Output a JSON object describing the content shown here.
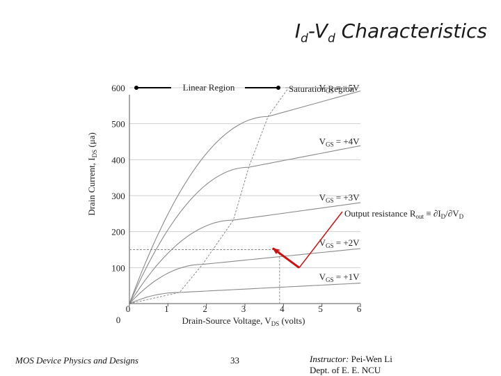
{
  "title": {
    "main": "I",
    "sub1": "d",
    "dash": "-V",
    "sub2": "d",
    "rest": " Characteristics"
  },
  "chart_data": {
    "type": "line",
    "xlabel": {
      "text": "Drain-Source Voltage, V",
      "sub": "DS",
      "after": " (volts)"
    },
    "ylabel": {
      "text": "Drain Current, I",
      "sub": "DS",
      "after": " (μa)"
    },
    "x_ticks": [
      0,
      1,
      2,
      3,
      4,
      5,
      6
    ],
    "x_tick_labels": [
      "0",
      "1",
      "2",
      "3",
      "4",
      "5",
      "6"
    ],
    "y_ticks": [
      100,
      200,
      300,
      400,
      500,
      600
    ],
    "y_tick_labels": [
      "100",
      "200",
      "300",
      "400",
      "500",
      "600"
    ],
    "origin_label": "0",
    "xlim": [
      0,
      6
    ],
    "ylim": [
      0,
      600
    ],
    "grid": true,
    "series": [
      {
        "name": "VGS = +1V",
        "label": "V",
        "label_sub": "GS",
        "label_after": " = +1V",
        "vsat": 1.3,
        "isat": 31,
        "slope": 5.5
      },
      {
        "name": "VGS = +2V",
        "label": "V",
        "label_sub": "GS",
        "label_after": " = +2V",
        "vsat": 1.9,
        "isat": 109,
        "slope": 10.7
      },
      {
        "name": "VGS = +3V",
        "label": "V",
        "label_sub": "GS",
        "label_after": " = +3V",
        "vsat": 2.7,
        "isat": 232,
        "slope": 14.7
      },
      {
        "name": "VGS = +4V",
        "label": "V",
        "label_sub": "GS",
        "label_after": " = +4V",
        "vsat": 3.1,
        "isat": 379,
        "slope": 20.6
      },
      {
        "name": "VGS = +5V",
        "label": "V",
        "label_sub": "GS",
        "label_after": " = +5V",
        "vsat": 3.6,
        "isat": 520,
        "slope": 29.6
      }
    ],
    "saturation_boundary": [
      [
        0,
        0
      ],
      [
        1.3,
        31
      ],
      [
        1.9,
        109
      ],
      [
        2.7,
        232
      ],
      [
        3.1,
        379
      ],
      [
        3.6,
        520
      ],
      [
        4.1,
        595
      ]
    ],
    "output_resistance_marker": {
      "x": 3.9,
      "y": 150
    },
    "annotations": {
      "linear_region": "Linear Region",
      "saturation_region": "Saturation Region",
      "output_resistance": {
        "text": "Output resistance R",
        "sub1": "out",
        "mid": " ≡ ∂I",
        "sub2": "D",
        "mid2": "/∂V",
        "sub3": "D"
      }
    }
  },
  "colors": {
    "curve": "#8a8a8a",
    "grid": "#cfcfcf",
    "axis": "#555555",
    "arrow_red": "#d01010",
    "text": "#222222"
  },
  "footer": {
    "left": "MOS Device Physics and Designs",
    "page": "33",
    "instructor_label": "Instructor:",
    "instructor_name": " Pei-Wen Li",
    "dept": "Dept. of E. E. NCU"
  }
}
